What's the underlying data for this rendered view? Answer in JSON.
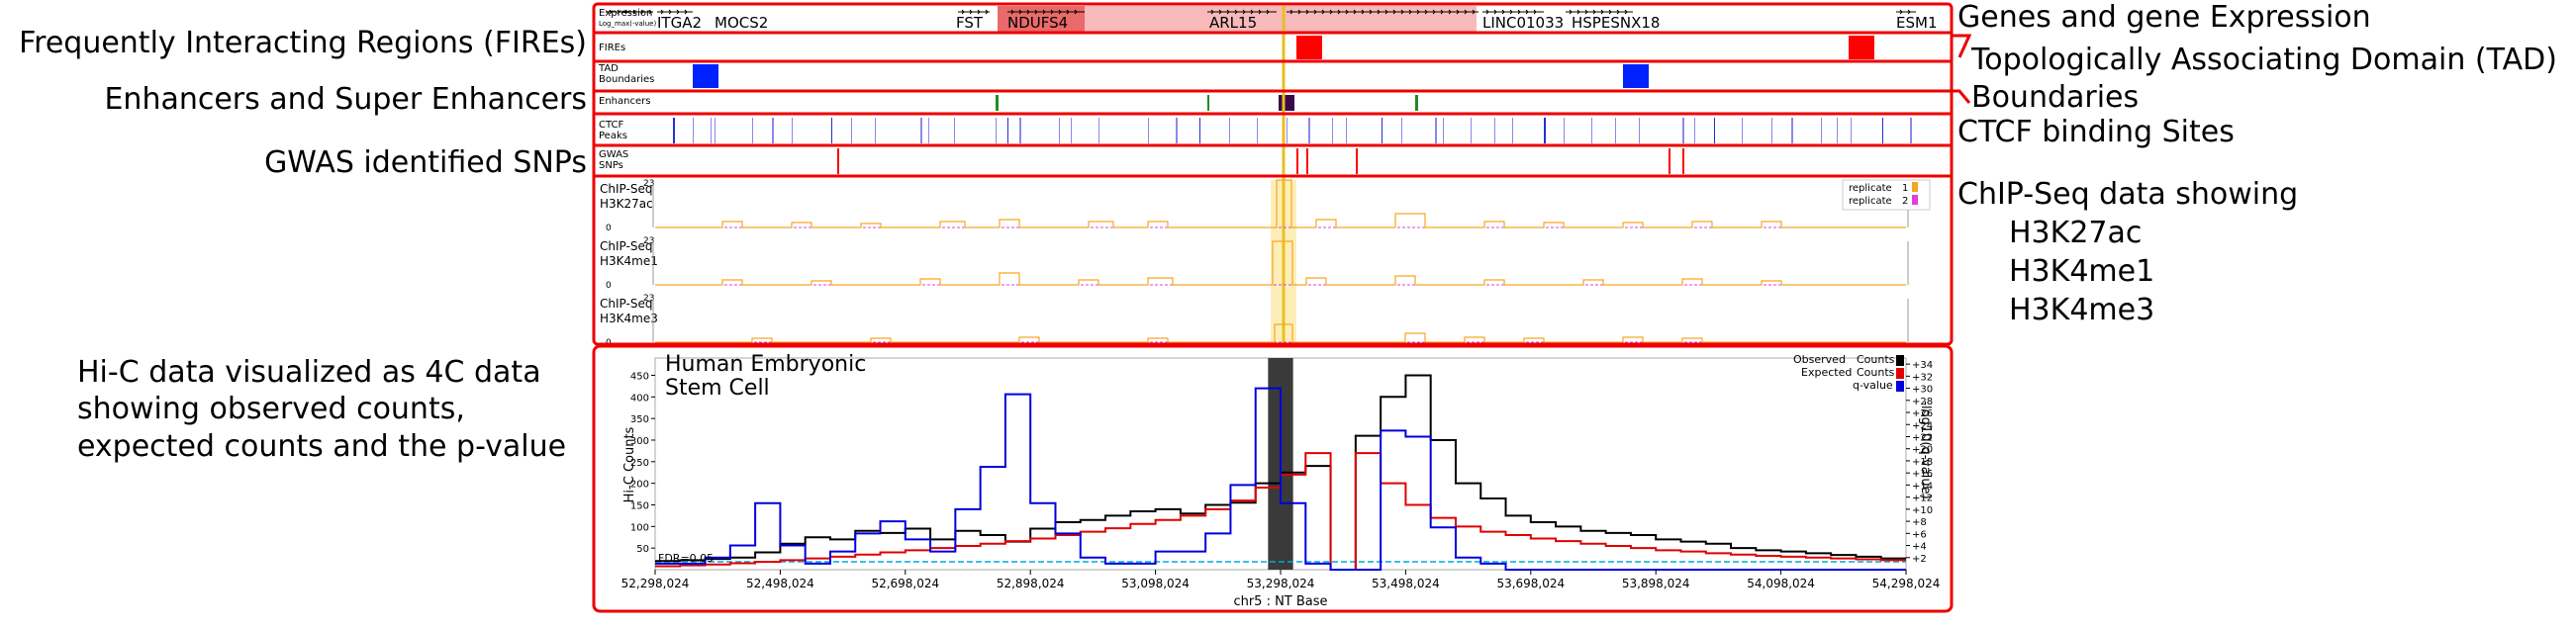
{
  "annotations": {
    "fires": "Frequently Interacting Regions (FIREs)",
    "enhancers": "Enhancers and Super Enhancers",
    "gwas": "GWAS identified SNPs",
    "hic": [
      "Hi-C data visualized as 4C data",
      "showing observed counts,",
      "expected counts and the p-value"
    ],
    "genes": "Genes and gene Expression",
    "tad": [
      "Topologically Associating Domain (TAD)",
      "Boundaries"
    ],
    "ctcf": "CTCF binding Sites",
    "chip": [
      "ChIP-Seq data showing",
      "H3K27ac",
      "H3K4me1",
      "H3K4me3"
    ]
  },
  "tracks": {
    "expression": [
      "Expression",
      "Log_max(-value)"
    ],
    "fires": [
      "FIREs"
    ],
    "tad": [
      "TAD",
      "Boundaries"
    ],
    "enhancers": [
      "Enhancers"
    ],
    "ctcf": [
      "CTCF",
      "Peaks"
    ],
    "gwas": [
      "GWAS",
      "SNPs"
    ]
  },
  "genes": [
    "ITGA2",
    "MOCS2",
    "FST",
    "NDUFS4",
    "ARL15",
    "LINC01033",
    "HSPESNX18",
    "ESM1"
  ],
  "chip": {
    "tracks": [
      {
        "label": [
          "ChIP-Seq",
          "H3K27ac"
        ],
        "max": "23",
        "min": "0"
      },
      {
        "label": [
          "ChIP-Seq",
          "H3K4me1"
        ],
        "max": "23",
        "min": "0"
      },
      {
        "label": [
          "ChIP-Seq",
          "H3K4me3"
        ],
        "max": "23",
        "min": "0"
      }
    ],
    "legend": [
      "replicate",
      "1",
      "replicate",
      "2"
    ],
    "colors": {
      "replicate1": "#f5a623",
      "replicate2": "#e040e0"
    }
  },
  "hic": {
    "title": [
      "Human Embryonic",
      "Stem Cell"
    ],
    "ylabel": "Hi-C Counts",
    "y2label": "-log10(q-value)",
    "fdr_label": "FDR=0.05",
    "legend": [
      "Observed",
      "Counts",
      "Expected",
      "Counts",
      "q-value"
    ],
    "xlabel": "chr5 : NT Base",
    "yticks": [
      "450",
      "400",
      "350",
      "300",
      "250",
      "200",
      "150",
      "100",
      "50"
    ],
    "y2ticks": [
      "34",
      "32",
      "30",
      "28",
      "26",
      "24",
      "22",
      "20",
      "18",
      "16",
      "14",
      "12",
      "10",
      "8",
      "6",
      "4",
      "2"
    ],
    "xticks": [
      "52,298,024",
      "52,498,024",
      "52,698,024",
      "52,898,024",
      "53,098,024",
      "53,298,024",
      "53,498,024",
      "53,698,024",
      "53,898,024",
      "54,098,024",
      "54,298,024"
    ],
    "colors": {
      "observed": "#000000",
      "expected": "#e00000",
      "qvalue": "#0000dd",
      "highlight": "#3a3a3a",
      "fdr": "#00aadd"
    }
  },
  "chart_data": {
    "type": "line",
    "title": "Human Embryonic Stem Cell",
    "xlabel": "chr5 : NT Base",
    "ylabel": "Hi-C Counts",
    "y2label": "-log10(q-value)",
    "xlim": [
      52298024,
      54298024
    ],
    "ylim": [
      0,
      490
    ],
    "y2lim": [
      0,
      35
    ],
    "bin_size": 40000,
    "viewpoint": 53298024,
    "fdr": 0.05,
    "series": [
      {
        "name": "Observed Counts",
        "axis": "left",
        "values": [
          20,
          22,
          25,
          28,
          40,
          60,
          75,
          70,
          90,
          85,
          95,
          70,
          90,
          80,
          65,
          95,
          110,
          115,
          125,
          135,
          140,
          130,
          150,
          155,
          200,
          225,
          240,
          0,
          310,
          400,
          450,
          300,
          200,
          165,
          125,
          110,
          100,
          90,
          85,
          80,
          70,
          65,
          60,
          50,
          45,
          42,
          38,
          34,
          30,
          26
        ]
      },
      {
        "name": "Expected Counts",
        "axis": "left",
        "values": [
          8,
          10,
          12,
          15,
          18,
          22,
          26,
          30,
          35,
          40,
          45,
          50,
          55,
          60,
          66,
          72,
          80,
          88,
          96,
          106,
          115,
          125,
          140,
          160,
          190,
          220,
          270,
          0,
          270,
          200,
          150,
          120,
          100,
          88,
          80,
          72,
          66,
          60,
          55,
          50,
          45,
          42,
          38,
          35,
          32,
          30,
          28,
          26,
          24,
          22
        ]
      },
      {
        "name": "q-value",
        "axis": "right",
        "values": [
          1,
          1,
          2,
          4,
          11,
          4,
          1,
          3,
          6,
          8,
          5,
          3,
          10,
          17,
          29,
          11,
          6,
          2,
          1,
          1,
          3,
          3,
          6,
          14,
          30,
          11,
          1,
          0,
          0,
          23,
          22,
          7,
          2,
          1,
          0,
          0,
          0,
          0,
          0,
          0,
          0,
          0,
          0,
          0,
          0,
          0,
          0,
          0,
          0,
          0
        ]
      }
    ]
  }
}
